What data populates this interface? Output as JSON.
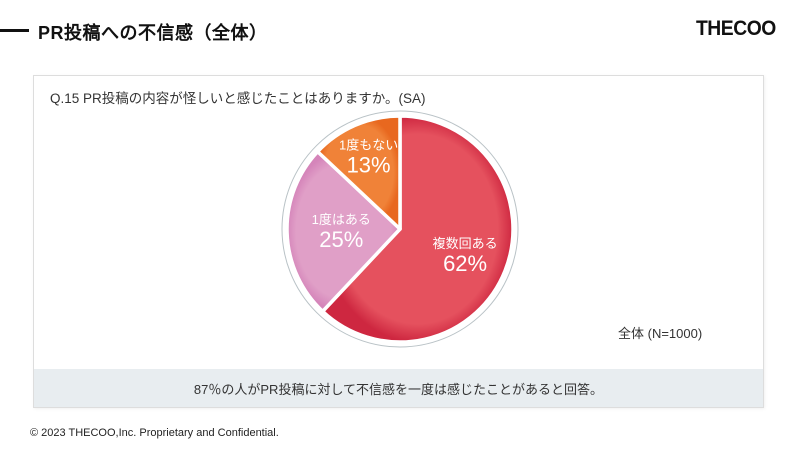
{
  "header": {
    "title": "PR投稿への不信感（全体）",
    "logo": "THECOO"
  },
  "panel": {
    "question": "Q.15 PR投稿の内容が怪しいと感じたことはありますか。(SA)",
    "sample_label": "全体 (N=1000)",
    "summary": "87％の人がPR投稿に対して不信感を一度は感じたことがあると回答。"
  },
  "chart_data": {
    "type": "pie",
    "title": "Q.15 PR投稿の内容が怪しいと感じたことはありますか。(SA)",
    "categories": [
      "複数回ある",
      "1度はある",
      "1度もない"
    ],
    "values": [
      62,
      25,
      13
    ],
    "unit": "%",
    "colors": [
      "#e5515e",
      "#e09fc7",
      "#f08238"
    ],
    "rim_colors": [
      "#ce2740",
      "#d585ba",
      "#e8681f"
    ],
    "slice_border_color": "#ffffff",
    "outer_ring_color": "#b9c2c6",
    "label_text_color": "#ffffff",
    "start_angle_deg": 0,
    "direction": "clockwise",
    "legend": "none",
    "sample": "全体 (N=1000)"
  },
  "footer": {
    "copyright": "© 2023 THECOO,Inc. Proprietary and Confidential."
  }
}
